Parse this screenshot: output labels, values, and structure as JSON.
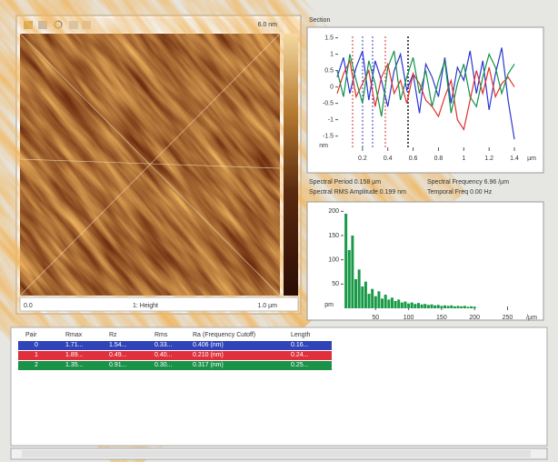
{
  "image_panel": {
    "scale_max": "6.0 nm",
    "x_start": "0.0",
    "channel": "1: Height",
    "x_end": "1.0 µm"
  },
  "section": {
    "title": "Section",
    "chart_data": {
      "type": "line",
      "y_unit": "nm",
      "x_unit": "µm",
      "xlim": [
        0,
        1.45
      ],
      "ylim": [
        -1.9,
        1.6
      ],
      "xticks": [
        0.2,
        0.4,
        0.6,
        0.8,
        1,
        1.2,
        1.4
      ],
      "yticks": [
        1.5,
        1,
        0.5,
        0,
        -0.5,
        -1,
        -1.5
      ],
      "x": [
        0,
        0.05,
        0.1,
        0.15,
        0.2,
        0.25,
        0.3,
        0.35,
        0.4,
        0.45,
        0.5,
        0.55,
        0.6,
        0.65,
        0.7,
        0.75,
        0.8,
        0.85,
        0.9,
        0.95,
        1,
        1.05,
        1.1,
        1.15,
        1.2,
        1.25,
        1.3,
        1.35,
        1.4
      ],
      "series": [
        {
          "color": "#2a36d4",
          "values": [
            0.3,
            0.9,
            -0.2,
            0.6,
            1.1,
            -0.4,
            0.8,
            0.2,
            -0.6,
            0.5,
            1.0,
            -0.1,
            0.4,
            -0.8,
            0.7,
            0.3,
            -0.3,
            0.9,
            -0.5,
            0.6,
            0.2,
            1.1,
            -0.2,
            0.8,
            -0.7,
            0.4,
            1.2,
            -0.4,
            -1.6
          ]
        },
        {
          "color": "#e0302a",
          "values": [
            -0.2,
            0.4,
            0.8,
            -0.3,
            0.1,
            0.5,
            -0.6,
            0.3,
            0.7,
            -0.2,
            0.2,
            -0.5,
            0.4,
            0.1,
            -0.4,
            -0.6,
            -0.9,
            -0.3,
            0.2,
            -1.0,
            -1.3,
            -0.4,
            0.5,
            -0.2,
            0.6,
            -0.3,
            0.1,
            0.3,
            0.0
          ]
        },
        {
          "color": "#12924a",
          "values": [
            0.5,
            -0.3,
            1.0,
            0.2,
            -0.5,
            0.8,
            0.1,
            -0.9,
            0.6,
            1.1,
            -0.4,
            0.3,
            0.9,
            -0.2,
            0.5,
            -0.6,
            0.2,
            0.8,
            -0.8,
            0.1,
            0.7,
            -0.3,
            -0.6,
            0.3,
            1.0,
            0.6,
            -0.2,
            0.4,
            0.7
          ]
        }
      ]
    }
  },
  "readouts": {
    "period": "Spectral Period 0.158 µm",
    "frequency": "Spectral Frequency 6.96 /µm",
    "amplitude": "Spectral RMS Amplitude 0.199 nm",
    "temporal": "Temporal Freq 0.00 Hz"
  },
  "spectrum": {
    "chart_data": {
      "type": "bar",
      "color": "#1a9a48",
      "y_unit": "pm",
      "x_unit": "/µm",
      "xlim": [
        0,
        270
      ],
      "ylim": [
        0,
        210
      ],
      "xticks": [
        50,
        100,
        150,
        200,
        250
      ],
      "yticks": [
        200,
        150,
        100,
        50
      ],
      "x": [
        5,
        10,
        15,
        20,
        25,
        30,
        35,
        40,
        45,
        50,
        55,
        60,
        65,
        70,
        75,
        80,
        85,
        90,
        95,
        100,
        105,
        110,
        115,
        120,
        125,
        130,
        135,
        140,
        145,
        150,
        155,
        160,
        165,
        170,
        175,
        180,
        185,
        190,
        195,
        200
      ],
      "values": [
        195,
        120,
        150,
        60,
        80,
        45,
        55,
        30,
        40,
        25,
        35,
        20,
        28,
        18,
        22,
        15,
        18,
        12,
        14,
        10,
        12,
        9,
        11,
        8,
        9,
        7,
        8,
        6,
        7,
        5,
        6,
        5,
        6,
        4,
        5,
        4,
        5,
        3,
        4,
        3
      ]
    }
  },
  "table": {
    "header": [
      "Pair",
      "Rmax",
      "Rz",
      "Rms",
      "Ra (Frequency Cutoff)",
      "Length"
    ],
    "row_colors": [
      "#2f44b8",
      "#e0303c",
      "#1a9248"
    ],
    "rows": [
      [
        "0",
        "1.71...",
        "1.54...",
        "0.33...",
        "0.406 (nm)",
        "0.16..."
      ],
      [
        "1",
        "1.89...",
        "0.49...",
        "0.40...",
        "0.210 (nm)",
        "0.24..."
      ],
      [
        "2",
        "1.35...",
        "0.91...",
        "0.30...",
        "0.317 (nm)",
        "0.25..."
      ]
    ]
  }
}
